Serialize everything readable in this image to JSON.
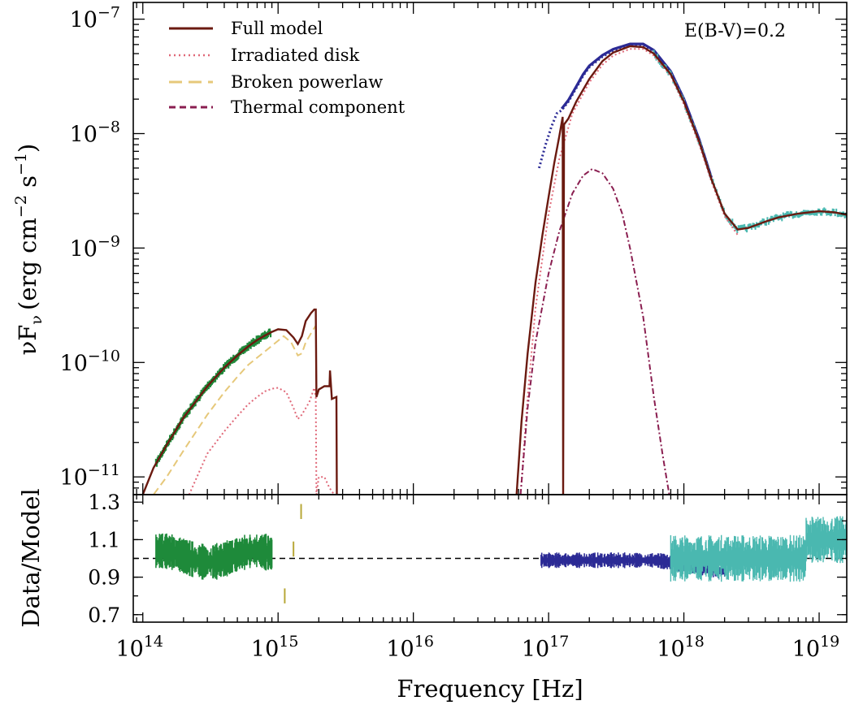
{
  "chart_data": [
    {
      "type": "line",
      "panel": "spectrum",
      "xscale": "log",
      "yscale": "log",
      "xlim": [
        85000000000000.0,
        1.6e+19
      ],
      "ylim": [
        7e-12,
        1.4e-07
      ],
      "ylabel_main": "νF",
      "ylabel_sub": "ν",
      "ylabel_units": "(erg cm",
      "ylabel_exp1": "−2",
      "ylabel_mid": " s",
      "ylabel_exp2": "−1",
      "ylabel_close": ")",
      "ytick_exponents": [
        "−7",
        "−8",
        "−9",
        "−10",
        "−11"
      ],
      "ytick_base": "10",
      "annotation": "E(B-V)=0.2",
      "legend": {
        "placement": "top-left",
        "entries": [
          "Full model",
          "Irradiated disk",
          "Broken powerlaw",
          "Thermal component"
        ]
      },
      "colors": {
        "full_model": "#6b1a10",
        "irradiated_disk": "#e06878",
        "broken_powerlaw": "#e6c87a",
        "thermal": "#8a1e50",
        "data_optical": "#1e8a3a",
        "data_uv": "#b8a838",
        "data_soft_xray": "#2b2a95",
        "data_hard_xray": "#4ab8b0"
      },
      "series": [
        {
          "name": "Full model",
          "x": [
            100000000000000.0,
            120000000000000.0,
            150000000000000.0,
            200000000000000.0,
            300000000000000.0,
            400000000000000.0,
            500000000000000.0,
            600000000000000.0,
            700000000000000.0,
            800000000000000.0,
            900000000000000.0,
            1000000000000000.0,
            1150000000000000.0,
            1300000000000000.0,
            1400000000000000.0,
            1500000000000000.0,
            1600000000000000.0,
            1750000000000000.0,
            1850000000000000.0,
            1900000000000000.0,
            1920000000000000.0,
            2000000000000000.0,
            2200000000000000.0,
            2400000000000000.0,
            2420000000000000.0,
            2500000000000000.0,
            2700000000000000.0,
            2720000000000000.0
          ],
          "y": [
            6e-12,
            1.2e-11,
            1.9e-11,
            3.3e-11,
            6.2e-11,
            9e-11,
            1.15e-10,
            1.38e-10,
            1.57e-10,
            1.72e-10,
            1.85e-10,
            1.95e-10,
            1.92e-10,
            1.65e-10,
            1.45e-10,
            1.7e-10,
            2.3e-10,
            2.7e-10,
            2.9e-10,
            2.9e-10,
            5e-11,
            5.8e-11,
            6.2e-11,
            6.2e-11,
            8.5e-11,
            4.8e-11,
            5e-11,
            7e-12
          ]
        },
        {
          "name": "Full model",
          "x": [
            5.8e+16,
            6.3e+16,
            7e+16,
            8e+16,
            9e+16,
            1e+17,
            1.1e+17,
            1.2e+17,
            1.27e+17,
            1.28e+17,
            1.3e+17,
            1.4e+17,
            1.6e+17,
            2e+17,
            2.5e+17,
            3e+17,
            4e+17,
            5e+17,
            6e+17,
            8e+17,
            1e+18,
            1.3e+18,
            1.6e+18,
            2e+18,
            2.5e+18,
            3e+18,
            4e+18,
            5e+18,
            7e+18,
            1e+19,
            1.3e+19,
            1.6e+19
          ],
          "y": [
            7e-12,
            3e-11,
            1.2e-10,
            5e-10,
            1.3e-09,
            2.8e-09,
            5.5e-09,
            9.5e-09,
            1.4e-08,
            7e-12,
            1.2e-08,
            1.35e-08,
            1.9e-08,
            3e-08,
            4.3e-08,
            5.1e-08,
            5.8e-08,
            5.7e-08,
            5e-08,
            3.3e-08,
            1.9e-08,
            8.5e-09,
            4e-09,
            2e-09,
            1.45e-09,
            1.5e-09,
            1.7e-09,
            1.85e-09,
            2e-09,
            2.1e-09,
            2.05e-09,
            1.95e-09
          ]
        },
        {
          "name": "Irradiated disk",
          "x": [
            220000000000000.0,
            300000000000000.0,
            400000000000000.0,
            500000000000000.0,
            600000000000000.0,
            700000000000000.0,
            800000000000000.0,
            900000000000000.0,
            1000000000000000.0,
            1150000000000000.0,
            1300000000000000.0,
            1400000000000000.0,
            1500000000000000.0,
            1700000000000000.0,
            1850000000000000.0,
            1900000000000000.0,
            1920000000000000.0,
            2000000000000000.0,
            2200000000000000.0,
            2400000000000000.0,
            2600000000000000.0
          ],
          "y": [
            7e-12,
            1.6e-11,
            2.5e-11,
            3.4e-11,
            4.3e-11,
            5e-11,
            5.6e-11,
            5.9e-11,
            6e-11,
            5.5e-11,
            4e-11,
            3.2e-11,
            3.5e-11,
            4.5e-11,
            6e-11,
            5e-11,
            7e-12,
            1e-11,
            1e-11,
            8e-12,
            7e-12
          ]
        },
        {
          "name": "Irradiated disk",
          "x": [
            6.2e+16,
            7e+16,
            8e+16,
            1e+17,
            1.2e+17,
            1.5e+17,
            2e+17,
            2.5e+17,
            3e+17,
            4e+17,
            5e+17,
            6e+17,
            8e+17,
            1e+18,
            1.3e+18,
            1.6e+18,
            2e+18,
            2.5e+18
          ],
          "y": [
            7e-12,
            5e-11,
            3e-10,
            2e-09,
            6e-09,
            1.5e-08,
            2.8e-08,
            4e-08,
            4.8e-08,
            5.5e-08,
            5.5e-08,
            4.8e-08,
            3.2e-08,
            1.8e-08,
            8e-09,
            3.8e-09,
            1.9e-09,
            1.3e-09
          ]
        },
        {
          "name": "Broken powerlaw",
          "x": [
            100000000000000.0,
            120000000000000.0,
            150000000000000.0,
            200000000000000.0,
            300000000000000.0,
            400000000000000.0,
            500000000000000.0,
            600000000000000.0,
            700000000000000.0,
            800000000000000.0,
            900000000000000.0,
            1000000000000000.0,
            1100000000000000.0,
            1250000000000000.0,
            1400000000000000.0,
            1500000000000000.0,
            1600000000000000.0,
            1800000000000000.0,
            1900000000000000.0
          ],
          "y": [
            4e-12,
            6e-12,
            1e-11,
            1.7e-11,
            3.5e-11,
            5.5e-11,
            7.5e-11,
            9.5e-11,
            1.1e-10,
            1.25e-10,
            1.4e-10,
            1.55e-10,
            1.7e-10,
            1.5e-10,
            1.15e-10,
            1.2e-10,
            1.5e-10,
            1.9e-10,
            2.1e-10
          ]
        },
        {
          "name": "Thermal component",
          "x": [
            6.2e+16,
            7e+16,
            8e+16,
            1e+17,
            1.2e+17,
            1.5e+17,
            1.8e+17,
            2.1e+17,
            2.5e+17,
            3e+17,
            3.5e+17,
            4e+17,
            5e+17,
            6e+17,
            7e+17,
            7.8e+17
          ],
          "y": [
            7e-12,
            4e-11,
            1.5e-10,
            6e-10,
            1.4e-09,
            3e-09,
            4.3e-09,
            4.9e-09,
            4.5e-09,
            3.3e-09,
            2e-09,
            1e-09,
            2.5e-10,
            5e-11,
            1.5e-11,
            7e-12
          ]
        },
        {
          "name": "Soft X-ray data",
          "x": [
            8.5e+16,
            9.5e+16,
            1.05e+17,
            1.15e+17,
            1.25e+17,
            1.4e+17,
            1.6e+17,
            1.8e+17,
            2e+17,
            2.5e+17,
            3e+17,
            4e+17,
            5e+17,
            6e+17,
            8e+17,
            1e+18,
            1.3e+18,
            1.6e+18
          ],
          "y": [
            5e-09,
            8e-09,
            1.15e-08,
            1.5e-08,
            1.6e-08,
            1.9e-08,
            2.5e-08,
            3.2e-08,
            3.8e-08,
            4.7e-08,
            5.3e-08,
            5.9e-08,
            5.9e-08,
            5.2e-08,
            3.4e-08,
            1.95e-08,
            8.6e-09,
            4e-09
          ]
        }
      ]
    },
    {
      "type": "scatter",
      "panel": "residuals",
      "xscale": "log",
      "xlim": [
        85000000000000.0,
        1.6e+19
      ],
      "ylim": [
        0.66,
        1.34
      ],
      "xlabel": "Frequency [Hz]",
      "ylabel": "Data/Model",
      "yticks": [
        "1.3",
        "1.1",
        "0.9",
        "0.7"
      ],
      "xtick_exponents": [
        "14",
        "15",
        "16",
        "17",
        "18",
        "19"
      ],
      "xtick_base": "10",
      "reference_line": 1.0,
      "series": [
        {
          "name": "Optical residuals",
          "xrange": [
            125000000000000.0,
            900000000000000.0
          ],
          "center": 1.01,
          "spread": 0.07
        },
        {
          "name": "UV residuals",
          "x": [
            1120000000000000.0,
            1300000000000000.0,
            1480000000000000.0
          ],
          "y": [
            0.8,
            1.05,
            1.25
          ]
        },
        {
          "name": "Soft X-ray residuals",
          "xrange": [
            8.8e+16,
            2e+18
          ],
          "center": 0.99,
          "spread": 0.03
        },
        {
          "name": "Hard X-ray residuals",
          "xrange": [
            8e+17,
            1.6e+19
          ],
          "center": 1.0,
          "spread": 0.09
        }
      ]
    }
  ]
}
